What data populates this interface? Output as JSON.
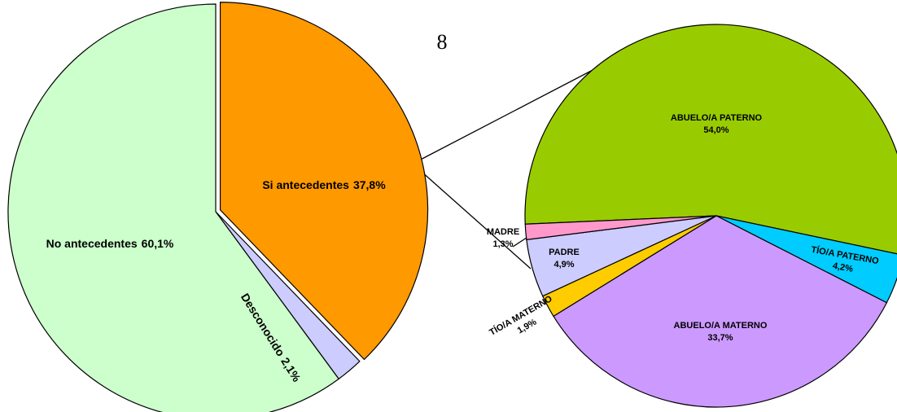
{
  "annotation": "8",
  "chart_data": [
    {
      "type": "pie",
      "categories": [
        "Si antecedentes",
        "Desconocido",
        "No antecedentes"
      ],
      "values": [
        37.8,
        2.1,
        60.1
      ],
      "value_labels": [
        "37,8%",
        "2,1%",
        "60,1%"
      ],
      "colors": [
        "#ff9900",
        "#ccccff",
        "#ccffcc"
      ]
    },
    {
      "type": "pie",
      "categories": [
        "ABUELO/A PATERNO",
        "TÍO/A PATERNO",
        "ABUELO/A MATERNO",
        "TÍO/A MATERNO",
        "PADRE",
        "MADRE"
      ],
      "values": [
        54.0,
        4.2,
        33.7,
        1.9,
        4.9,
        1.3
      ],
      "value_labels": [
        "54,0%",
        "4,2%",
        "33,7%",
        "1,9%",
        "4,9%",
        "1,3%"
      ],
      "colors": [
        "#99cc00",
        "#00ccff",
        "#cc99ff",
        "#ffcc00",
        "#ccccff",
        "#ff99cc"
      ]
    }
  ]
}
